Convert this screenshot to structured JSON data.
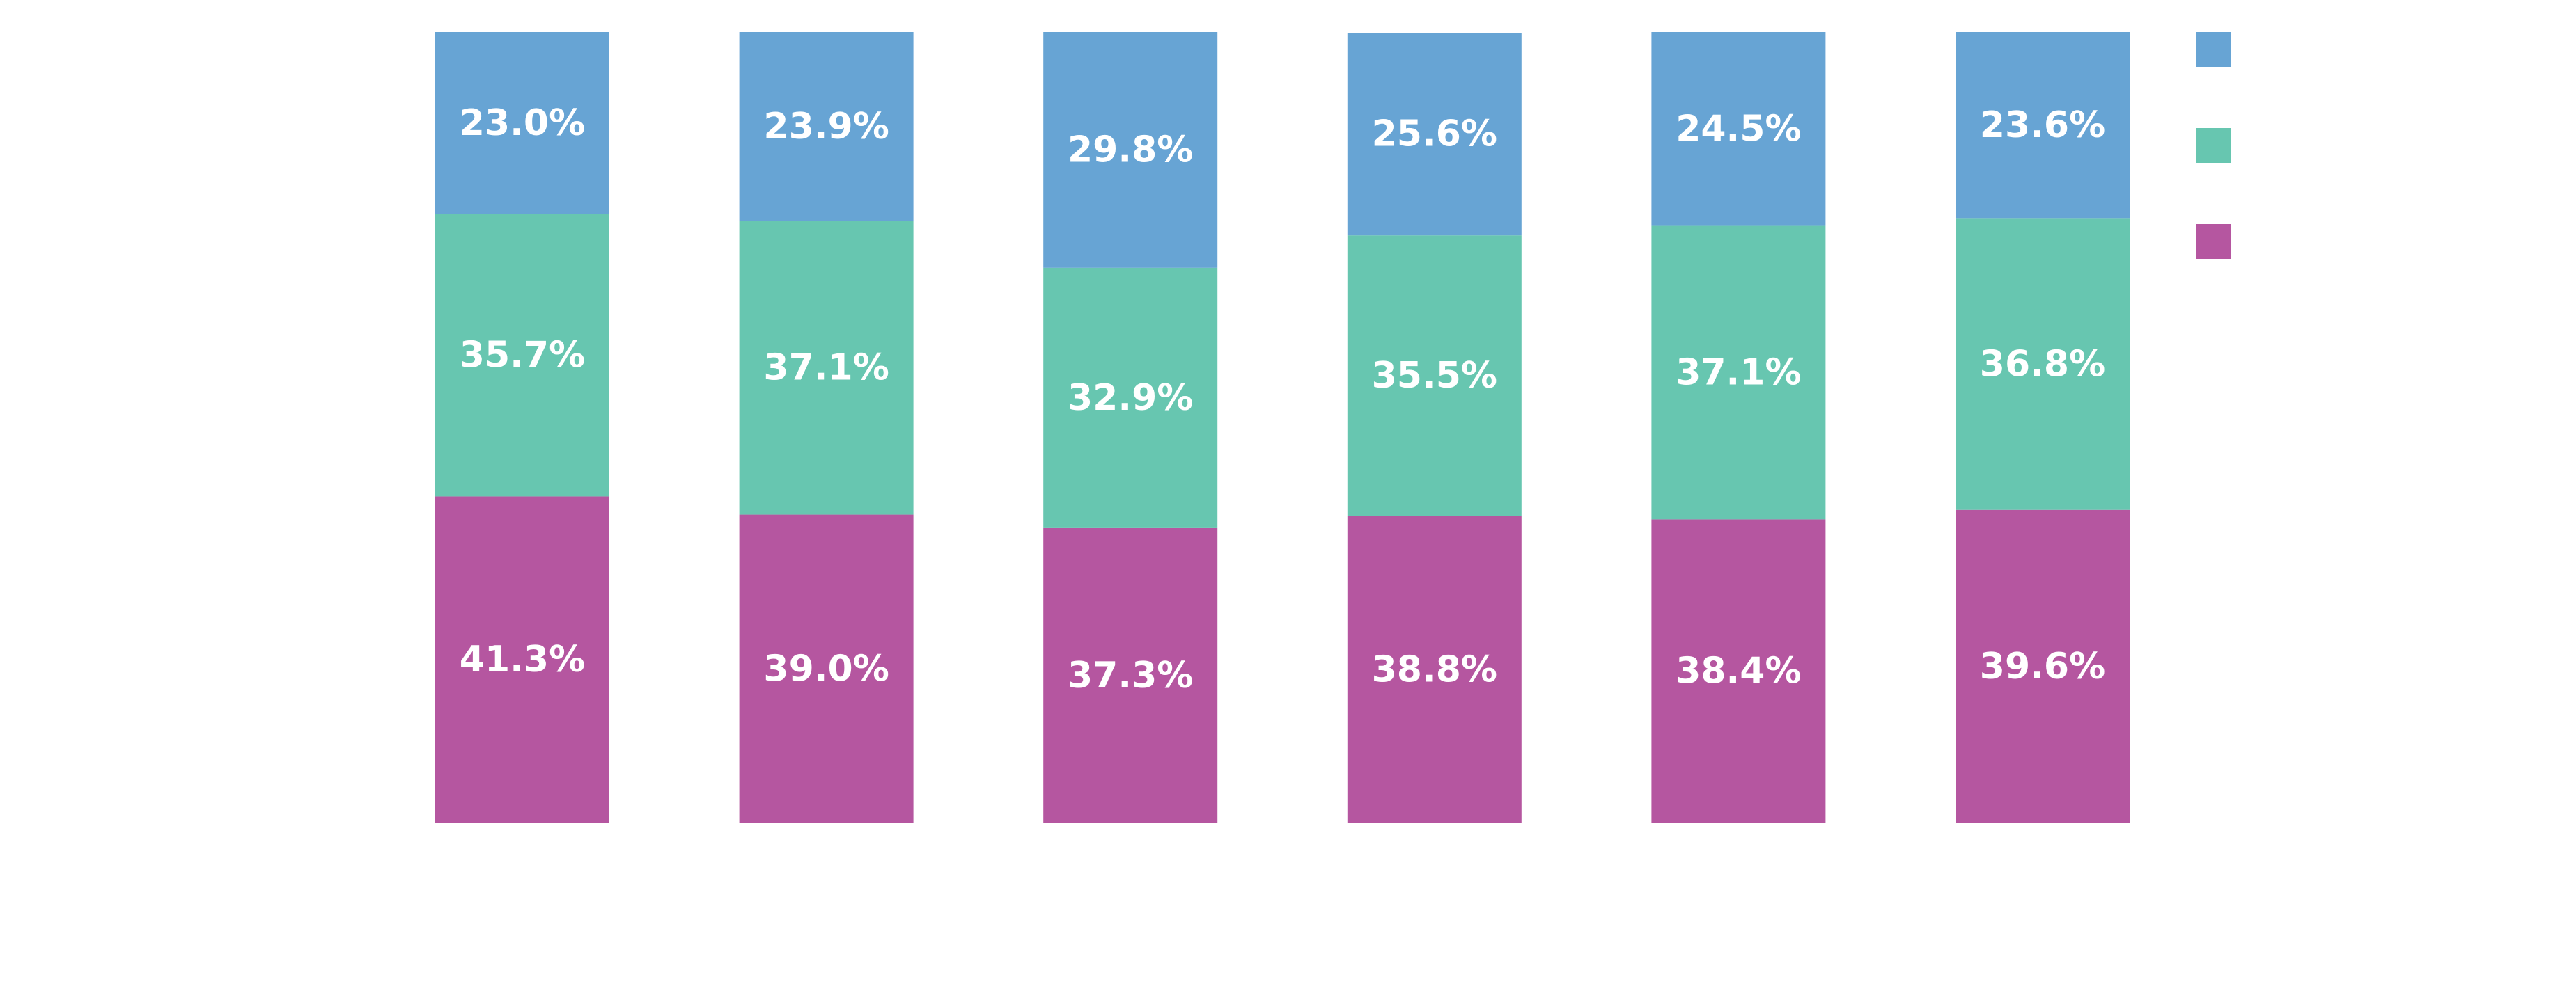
{
  "colors": {
    "background": "#ffffff",
    "segment_label": "#ffffff"
  },
  "chart_data": {
    "type": "bar",
    "stacked": true,
    "normalized": true,
    "title": "",
    "xlabel": "",
    "ylabel": "",
    "ylim": [
      0,
      100
    ],
    "grid": false,
    "legend_position": "right",
    "categories": [
      "",
      "",
      "",
      "",
      "",
      ""
    ],
    "series": [
      {
        "name": "",
        "color": "#b556a0",
        "values": [
          41.3,
          39.0,
          37.3,
          38.8,
          38.4,
          39.6
        ],
        "labels": [
          "41.3%",
          "39.0%",
          "37.3%",
          "38.8%",
          "38.4%",
          "39.6%"
        ]
      },
      {
        "name": "",
        "color": "#67c6b0",
        "values": [
          35.7,
          37.1,
          32.9,
          35.5,
          37.1,
          36.8
        ],
        "labels": [
          "35.7%",
          "37.1%",
          "32.9%",
          "35.5%",
          "37.1%",
          "36.8%"
        ]
      },
      {
        "name": "",
        "color": "#67a4d4",
        "values": [
          23.0,
          23.9,
          29.8,
          25.6,
          24.5,
          23.6
        ],
        "labels": [
          "23.0%",
          "23.9%",
          "29.8%",
          "25.6%",
          "24.5%",
          "23.6%"
        ]
      }
    ],
    "legend_order": [
      2,
      1,
      0
    ]
  }
}
